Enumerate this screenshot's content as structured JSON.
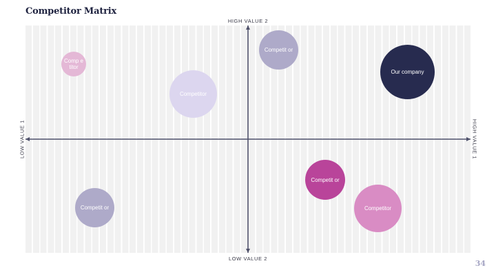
{
  "title": "Competitor Matrix",
  "axes": {
    "top": "HIGH VALUE 2",
    "bottom": "LOW VALUE 2",
    "left": "LOW VALUE 1",
    "right": "HIGH VALUE 1"
  },
  "bubbles": [
    {
      "label": "Comp etitor",
      "color": "#e4b8d6"
    },
    {
      "label": "Competit or",
      "color": "#aeaac9"
    },
    {
      "label": "Competitor",
      "color": "#dcd6ef"
    },
    {
      "label": "Our company",
      "color": "#272b4f"
    },
    {
      "label": "Competit or",
      "color": "#b9449a"
    },
    {
      "label": "Competit or",
      "color": "#aeaac9"
    },
    {
      "label": "Competitor",
      "color": "#d98cc4"
    }
  ],
  "page_number": "34",
  "colors": {
    "axis": "#4e506a",
    "title": "#1f2340"
  }
}
